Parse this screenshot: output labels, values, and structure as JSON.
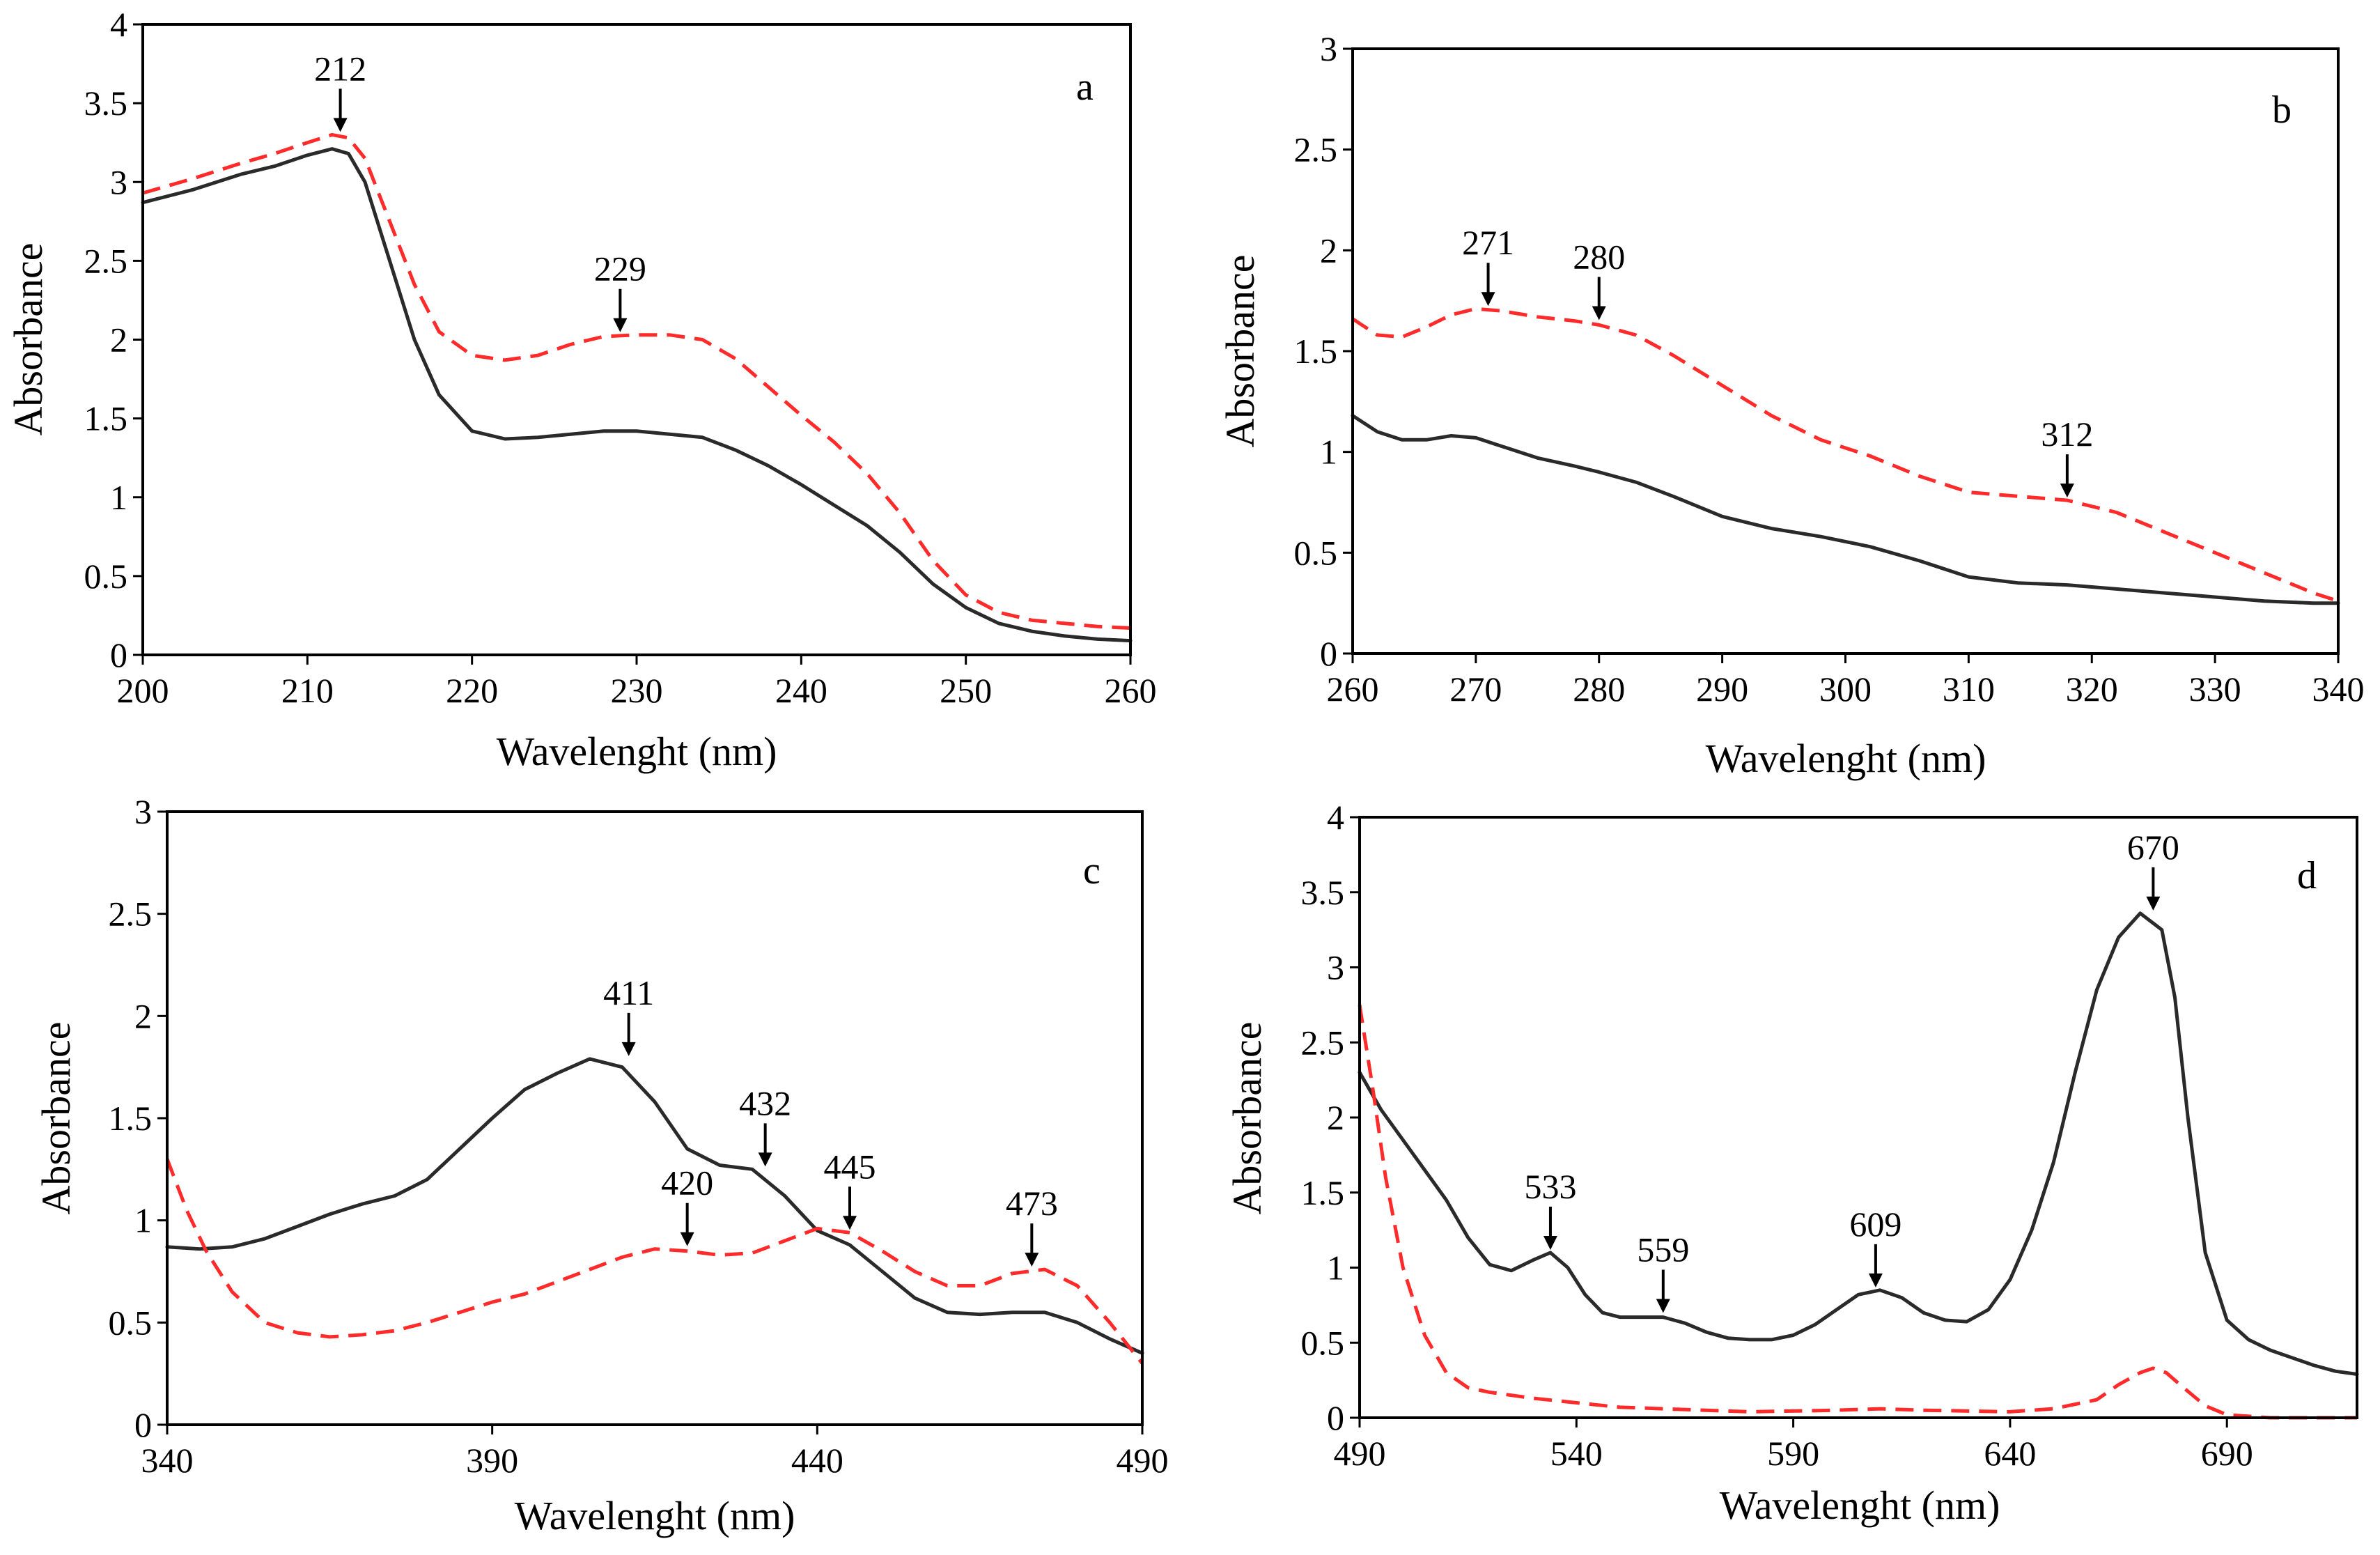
{
  "colors": {
    "black_series": "#2a2a2a",
    "red_series": "#ff2a2a",
    "axes": "#000000"
  },
  "chart_data": [
    {
      "type": "line",
      "panel": "a",
      "xlabel": "Wavelenght (nm)",
      "ylabel": "Absorbance",
      "xlim": [
        200,
        260
      ],
      "ylim": [
        0,
        4
      ],
      "xticks": [
        "200",
        "210",
        "220",
        "230",
        "240",
        "250",
        "260"
      ],
      "yticks": [
        "0",
        "0.5",
        "1",
        "1.5",
        "2",
        "2.5",
        "3",
        "3.5",
        "4"
      ],
      "series": [
        {
          "name": "black",
          "style": "solid",
          "x": [
            200,
            203,
            206,
            208,
            210,
            211.5,
            212.5,
            213.5,
            215,
            216.5,
            218,
            220,
            222,
            224,
            226,
            228,
            230,
            232,
            234,
            236,
            238,
            240,
            242,
            244,
            246,
            248,
            250,
            252,
            254,
            256,
            258,
            260
          ],
          "y": [
            2.87,
            2.95,
            3.05,
            3.1,
            3.17,
            3.21,
            3.18,
            3.0,
            2.5,
            2.0,
            1.65,
            1.42,
            1.37,
            1.38,
            1.4,
            1.42,
            1.42,
            1.4,
            1.38,
            1.3,
            1.2,
            1.08,
            0.95,
            0.82,
            0.65,
            0.45,
            0.3,
            0.2,
            0.15,
            0.12,
            0.1,
            0.09
          ]
        },
        {
          "name": "red",
          "style": "dashed",
          "x": [
            200,
            203,
            206,
            208,
            210,
            211.5,
            212.5,
            213.5,
            215,
            216.5,
            218,
            220,
            222,
            224,
            226,
            228,
            230,
            232,
            234,
            236,
            238,
            240,
            242,
            244,
            246,
            248,
            250,
            252,
            254,
            256,
            258,
            260
          ],
          "y": [
            2.93,
            3.02,
            3.12,
            3.18,
            3.25,
            3.3,
            3.28,
            3.15,
            2.75,
            2.35,
            2.05,
            1.9,
            1.87,
            1.9,
            1.97,
            2.02,
            2.03,
            2.03,
            2.0,
            1.88,
            1.7,
            1.52,
            1.35,
            1.15,
            0.9,
            0.6,
            0.38,
            0.27,
            0.22,
            0.2,
            0.18,
            0.17
          ]
        }
      ],
      "annotations": [
        {
          "label": "212",
          "x": 212,
          "y": 3.3
        },
        {
          "label": "229",
          "x": 229,
          "y": 2.03
        }
      ]
    },
    {
      "type": "line",
      "panel": "b",
      "xlabel": "Wavelenght (nm)",
      "ylabel": "Absorbance",
      "xlim": [
        260,
        340
      ],
      "ylim": [
        0,
        3
      ],
      "xticks": [
        "260",
        "270",
        "280",
        "290",
        "300",
        "310",
        "320",
        "330",
        "340"
      ],
      "yticks": [
        "0",
        "0.5",
        "1",
        "1.5",
        "2",
        "2.5",
        "3"
      ],
      "series": [
        {
          "name": "black",
          "style": "solid",
          "x": [
            260,
            262,
            264,
            266,
            268,
            270,
            272,
            275,
            278,
            280,
            283,
            286,
            290,
            294,
            298,
            302,
            306,
            310,
            314,
            318,
            322,
            326,
            330,
            334,
            338,
            340
          ],
          "y": [
            1.18,
            1.1,
            1.06,
            1.06,
            1.08,
            1.07,
            1.03,
            0.97,
            0.93,
            0.9,
            0.85,
            0.78,
            0.68,
            0.62,
            0.58,
            0.53,
            0.46,
            0.38,
            0.35,
            0.34,
            0.32,
            0.3,
            0.28,
            0.26,
            0.25,
            0.25
          ]
        },
        {
          "name": "red",
          "style": "dashed",
          "x": [
            260,
            262,
            264,
            266,
            268,
            270,
            272,
            275,
            278,
            280,
            283,
            286,
            290,
            294,
            298,
            302,
            306,
            310,
            314,
            318,
            322,
            326,
            330,
            334,
            338,
            340
          ],
          "y": [
            1.66,
            1.58,
            1.57,
            1.62,
            1.68,
            1.71,
            1.7,
            1.67,
            1.65,
            1.63,
            1.58,
            1.48,
            1.33,
            1.18,
            1.06,
            0.98,
            0.88,
            0.8,
            0.78,
            0.76,
            0.7,
            0.6,
            0.5,
            0.4,
            0.3,
            0.26
          ]
        }
      ],
      "annotations": [
        {
          "label": "271",
          "x": 271,
          "y": 1.71
        },
        {
          "label": "280",
          "x": 280,
          "y": 1.64
        },
        {
          "label": "312",
          "x": 318,
          "y": 0.76
        }
      ]
    },
    {
      "type": "line",
      "panel": "c",
      "xlabel": "Wavelenght (nm)",
      "ylabel": "Absorbance",
      "xlim": [
        340,
        490
      ],
      "ylim": [
        0,
        3
      ],
      "xticks": [
        "340",
        "390",
        "440",
        "490"
      ],
      "yticks": [
        "0",
        "0.5",
        "1",
        "1.5",
        "2",
        "2.5",
        "3"
      ],
      "series": [
        {
          "name": "black",
          "style": "solid",
          "x": [
            340,
            345,
            350,
            355,
            360,
            365,
            370,
            375,
            380,
            385,
            390,
            395,
            400,
            405,
            410,
            415,
            420,
            425,
            430,
            435,
            440,
            445,
            450,
            455,
            460,
            465,
            470,
            475,
            480,
            485,
            490
          ],
          "y": [
            0.87,
            0.86,
            0.87,
            0.91,
            0.97,
            1.03,
            1.08,
            1.12,
            1.2,
            1.35,
            1.5,
            1.64,
            1.72,
            1.79,
            1.75,
            1.58,
            1.35,
            1.27,
            1.25,
            1.12,
            0.95,
            0.88,
            0.75,
            0.62,
            0.55,
            0.54,
            0.55,
            0.55,
            0.5,
            0.42,
            0.35
          ]
        },
        {
          "name": "red",
          "style": "dashed",
          "x": [
            340,
            343,
            346,
            350,
            355,
            360,
            365,
            370,
            375,
            380,
            385,
            390,
            395,
            400,
            405,
            410,
            415,
            420,
            425,
            430,
            435,
            440,
            445,
            450,
            455,
            460,
            465,
            470,
            475,
            480,
            485,
            490
          ],
          "y": [
            1.3,
            1.05,
            0.85,
            0.65,
            0.5,
            0.45,
            0.43,
            0.44,
            0.46,
            0.5,
            0.55,
            0.6,
            0.64,
            0.7,
            0.76,
            0.82,
            0.86,
            0.85,
            0.83,
            0.84,
            0.9,
            0.96,
            0.94,
            0.85,
            0.75,
            0.68,
            0.68,
            0.74,
            0.76,
            0.68,
            0.5,
            0.3
          ]
        }
      ],
      "annotations": [
        {
          "label": "411",
          "x": 411,
          "y": 1.79
        },
        {
          "label": "432",
          "x": 432,
          "y": 1.25
        },
        {
          "label": "420",
          "x": 420,
          "y": 0.86
        },
        {
          "label": "445",
          "x": 445,
          "y": 0.94
        },
        {
          "label": "473",
          "x": 473,
          "y": 0.76
        }
      ]
    },
    {
      "type": "line",
      "panel": "d",
      "xlabel": "Wavelenght (nm)",
      "ylabel": "Absorbance",
      "xlim": [
        490,
        720
      ],
      "ylim": [
        0,
        4
      ],
      "xticks": [
        "490",
        "540",
        "590",
        "640",
        "690"
      ],
      "yticks": [
        "0",
        "0.5",
        "1",
        "1.5",
        "2",
        "2.5",
        "3",
        "3.5",
        "4"
      ],
      "series": [
        {
          "name": "black",
          "style": "solid",
          "x": [
            490,
            495,
            500,
            505,
            510,
            515,
            520,
            525,
            530,
            534,
            538,
            542,
            546,
            550,
            555,
            560,
            565,
            570,
            575,
            580,
            585,
            590,
            595,
            600,
            605,
            610,
            615,
            620,
            625,
            630,
            635,
            640,
            645,
            650,
            655,
            660,
            665,
            670,
            675,
            678,
            681,
            685,
            690,
            695,
            700,
            705,
            710,
            715,
            720
          ],
          "y": [
            2.3,
            2.05,
            1.85,
            1.65,
            1.45,
            1.2,
            1.02,
            0.98,
            1.05,
            1.1,
            1.0,
            0.82,
            0.7,
            0.67,
            0.67,
            0.67,
            0.63,
            0.57,
            0.53,
            0.52,
            0.52,
            0.55,
            0.62,
            0.72,
            0.82,
            0.85,
            0.8,
            0.7,
            0.65,
            0.64,
            0.72,
            0.92,
            1.25,
            1.7,
            2.3,
            2.85,
            3.2,
            3.36,
            3.25,
            2.8,
            2.0,
            1.1,
            0.65,
            0.52,
            0.45,
            0.4,
            0.35,
            0.31,
            0.29
          ]
        },
        {
          "name": "red",
          "style": "dashed",
          "x": [
            490,
            493,
            496,
            500,
            505,
            510,
            515,
            520,
            525,
            530,
            540,
            550,
            560,
            580,
            600,
            610,
            620,
            640,
            650,
            660,
            665,
            670,
            673,
            676,
            680,
            685,
            690,
            700,
            710,
            720
          ],
          "y": [
            2.75,
            2.2,
            1.6,
            1.0,
            0.55,
            0.3,
            0.2,
            0.17,
            0.15,
            0.13,
            0.1,
            0.07,
            0.06,
            0.04,
            0.05,
            0.06,
            0.05,
            0.04,
            0.06,
            0.12,
            0.22,
            0.3,
            0.33,
            0.3,
            0.2,
            0.08,
            0.02,
            0.0,
            0.0,
            0.0
          ]
        }
      ],
      "annotations": [
        {
          "label": "670",
          "x": 673,
          "y": 3.36
        },
        {
          "label": "533",
          "x": 534,
          "y": 1.1
        },
        {
          "label": "559",
          "x": 560,
          "y": 0.68
        },
        {
          "label": "609",
          "x": 609,
          "y": 0.85
        }
      ]
    }
  ]
}
